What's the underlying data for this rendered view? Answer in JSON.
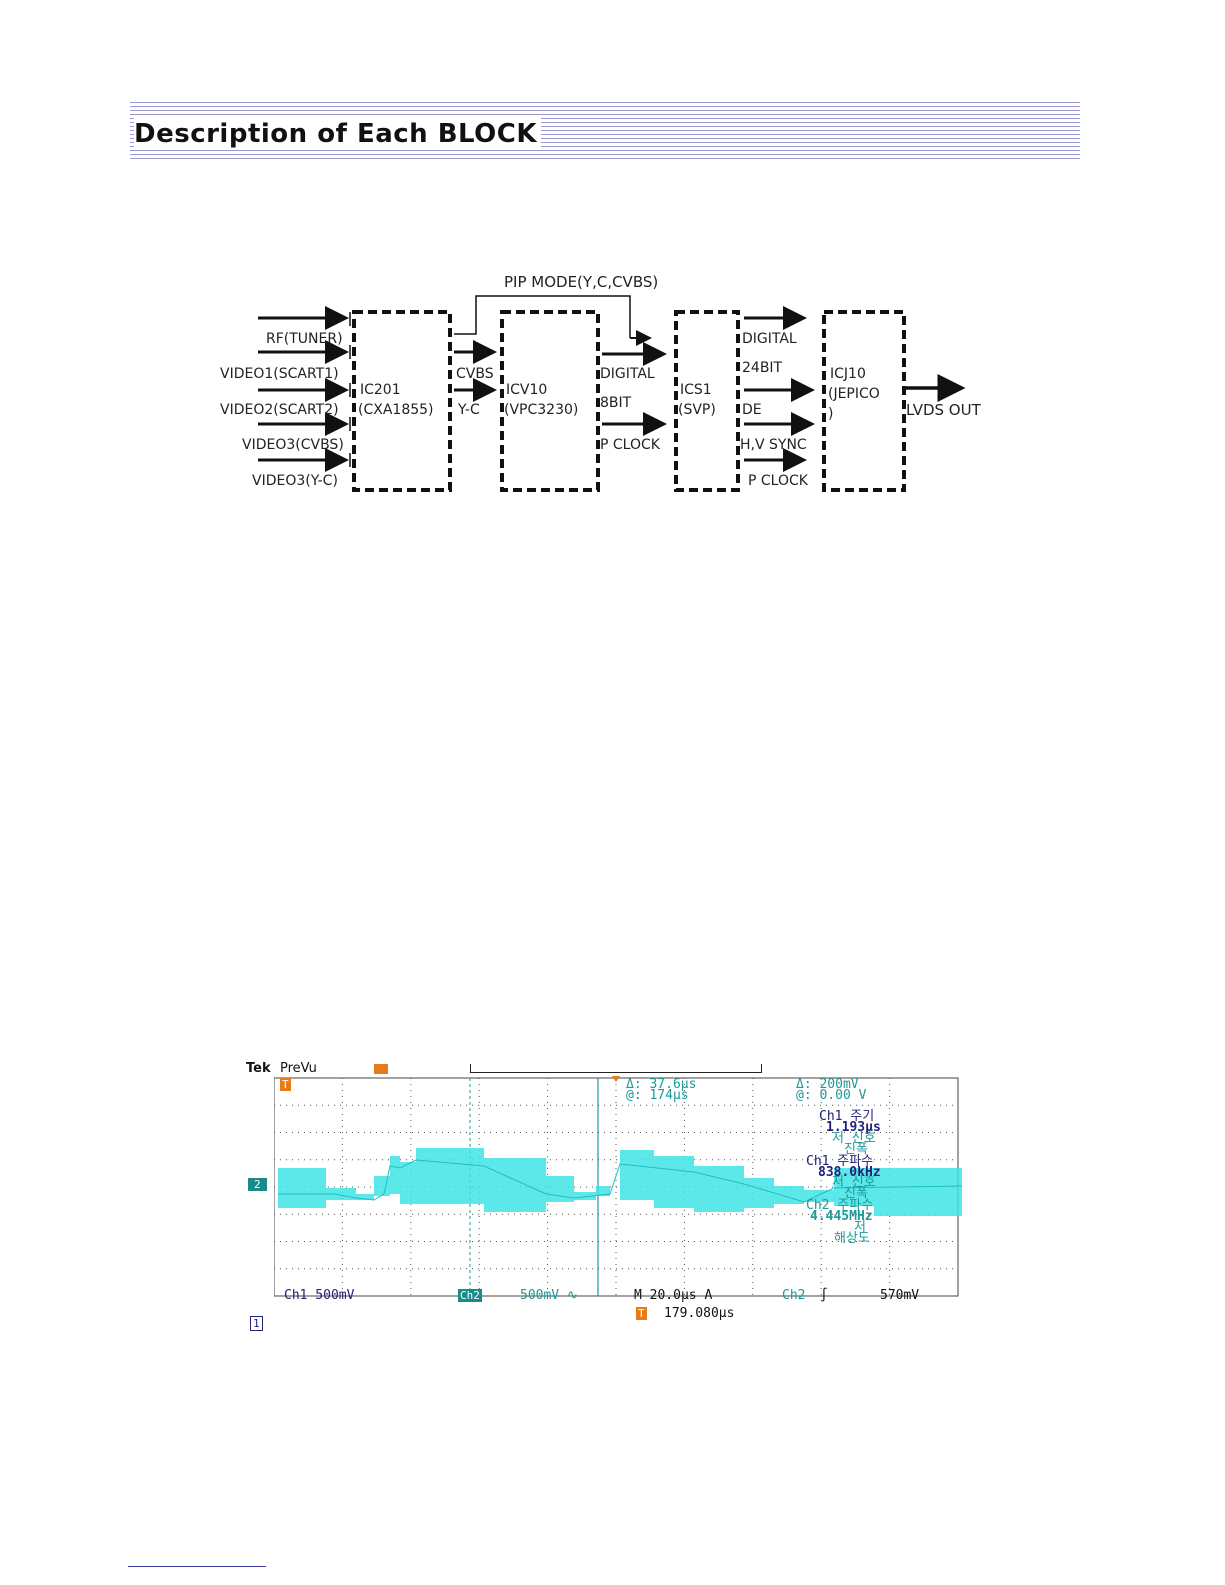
{
  "header": {
    "title": "Description of Each BLOCK"
  },
  "diagram": {
    "pip_label": "PIP MODE(Y,C,CVBS)",
    "inputs": [
      "RF(TUNER)",
      "VIDEO1(SCART1)",
      "VIDEO2(SCART2)",
      "VIDEO3(CVBS)",
      "VIDEO3(Y-C)"
    ],
    "blocks": [
      {
        "line1": "IC201",
        "line2": "(CXA1855)"
      },
      {
        "line1": "ICV10",
        "line2": "(VPC3230)"
      },
      {
        "line1": "ICS1",
        "line2": "(SVP)"
      },
      {
        "line1": "ICJ10",
        "line2": "(JEPICO",
        "line3": ")"
      }
    ],
    "signals_1_2": [
      "CVBS",
      "Y-C"
    ],
    "signals_2_3": [
      "DIGITAL",
      "8BIT",
      "P CLOCK"
    ],
    "signals_3_4": [
      "DIGITAL",
      "24BIT",
      "DE",
      "H,V SYNC",
      "P CLOCK"
    ],
    "output": "LVDS OUT"
  },
  "scope": {
    "brand": "Tek",
    "mode": "PreVu",
    "trigger_marker": "T",
    "channel_marker": "2",
    "ground_marker": "1",
    "cursor_delta_time": "Δ:   37.6µs",
    "cursor_at_time": "@:    174µs",
    "cursor_delta_volt": "Δ:   200mV",
    "cursor_at_volt": "@:   0.00 V",
    "measurements": [
      {
        "label": "Ch1 주기",
        "value": "1.193µs",
        "note1": "저 신호",
        "note2": "진폭"
      },
      {
        "label": "Ch1 주파수",
        "value": "838.0kHz",
        "note1": "저 신호",
        "note2": "진폭"
      },
      {
        "label": "Ch2 주파수",
        "value": "4.445MHz",
        "note1": "저",
        "note2": "해상도"
      }
    ],
    "ch1_scale": "Ch1   500mV",
    "ch2_label": "Ch2",
    "ch2_scale": "500mV ∿",
    "timebase": "M 20.0µs A",
    "trig_source": "Ch2",
    "trig_level": "570mV",
    "trig_pos": "179.080µs",
    "colors": {
      "trace": "#3fe4e4",
      "grid": "#555555",
      "label_teal": "#1a9a9a",
      "marker_orange": "#e87a1a"
    }
  }
}
